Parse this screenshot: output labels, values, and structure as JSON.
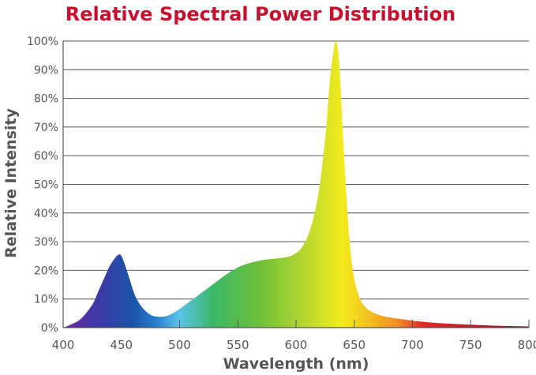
{
  "chart_data": {
    "type": "area",
    "title": "Relative Spectral Power Distribution",
    "xlabel": "Wavelength (nm)",
    "ylabel": "Relative Intensity",
    "xlim": [
      400,
      800
    ],
    "ylim": [
      0,
      100
    ],
    "x_ticks": [
      "400",
      "450",
      "500",
      "550",
      "600",
      "650",
      "700",
      "750",
      "800"
    ],
    "y_ticks": [
      "0%",
      "10%",
      "20%",
      "30%",
      "40%",
      "50%",
      "60%",
      "70%",
      "80%",
      "90%",
      "100%"
    ],
    "grid": true,
    "fill": "visible-spectrum gradient by wavelength",
    "colors": {
      "title": "#c8102e",
      "axis_text": "#555555",
      "grid": "#555555"
    },
    "x": [
      395,
      405,
      415,
      425,
      430,
      435,
      440,
      445,
      448,
      450,
      453,
      457,
      462,
      468,
      475,
      482,
      490,
      500,
      510,
      520,
      530,
      540,
      550,
      560,
      570,
      580,
      590,
      598,
      605,
      612,
      618,
      622,
      626,
      629,
      632,
      634,
      636,
      638,
      640,
      643,
      646,
      650,
      655,
      660,
      665,
      675,
      690,
      710,
      740,
      770,
      800
    ],
    "y": [
      0,
      0.8,
      3,
      8,
      12.5,
      17,
      21.5,
      24.5,
      25.5,
      25,
      22,
      17,
      11,
      7,
      4.5,
      3.8,
      4.2,
      6.5,
      9.5,
      12.5,
      15.5,
      18.5,
      21,
      22.5,
      23.5,
      24,
      24.5,
      25.5,
      28,
      34,
      44,
      55,
      70,
      86,
      96,
      100,
      97,
      86,
      70,
      48,
      30,
      17,
      10,
      7,
      5.5,
      4,
      3,
      2,
      1.2,
      0.7,
      0.4
    ]
  }
}
